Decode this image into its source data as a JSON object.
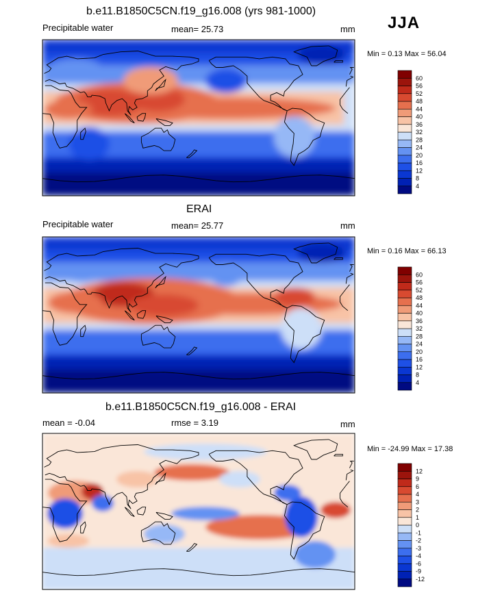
{
  "season": "JJA",
  "panels": [
    {
      "title": "b.e11.B1850C5CN.f19_g16.008 (yrs 981-1000)",
      "left_label": "Precipitable water",
      "center_label": "mean=  25.73",
      "right_label": "mm",
      "minmax": "Min =   0.13 Max =  56.04"
    },
    {
      "title": "ERAI",
      "left_label": "Precipitable water",
      "center_label": "mean=  25.77",
      "right_label": "mm",
      "minmax": "Min =   0.16 Max =  66.13"
    },
    {
      "title": "b.e11.B1850C5CN.f19_g16.008 - ERAI",
      "left_label": "mean =  -0.04",
      "center_label": "rmse =   3.19",
      "right_label": "mm",
      "minmax": "Min = -24.99 Max =  17.38"
    }
  ],
  "chart_data": [
    {
      "type": "heatmap",
      "title": "b.e11.B1850C5CN.f19_g16.008 (yrs 981-1000)",
      "variable": "Precipitable water",
      "units": "mm",
      "mean": 25.73,
      "min": 0.13,
      "max": 56.04,
      "colorbar_levels": [
        "4",
        "8",
        "12",
        "16",
        "20",
        "24",
        "28",
        "32",
        "36",
        "40",
        "44",
        "48",
        "52",
        "56",
        "60"
      ],
      "colors": [
        "#000a82",
        "#0021b4",
        "#0a37d2",
        "#1e50e6",
        "#3c6eee",
        "#6492f2",
        "#96b8f6",
        "#cddff8",
        "#fae6d8",
        "#f8c3a6",
        "#f09b78",
        "#e6704e",
        "#d84a30",
        "#c02a1a",
        "#9c140c",
        "#800000"
      ]
    },
    {
      "type": "heatmap",
      "title": "ERAI",
      "variable": "Precipitable water",
      "units": "mm",
      "mean": 25.77,
      "min": 0.16,
      "max": 66.13,
      "colorbar_levels": [
        "4",
        "8",
        "12",
        "16",
        "20",
        "24",
        "28",
        "32",
        "36",
        "40",
        "44",
        "48",
        "52",
        "56",
        "60"
      ],
      "colors": [
        "#000a82",
        "#0021b4",
        "#0a37d2",
        "#1e50e6",
        "#3c6eee",
        "#6492f2",
        "#96b8f6",
        "#cddff8",
        "#fae6d8",
        "#f8c3a6",
        "#f09b78",
        "#e6704e",
        "#d84a30",
        "#c02a1a",
        "#9c140c",
        "#800000"
      ]
    },
    {
      "type": "heatmap",
      "title": "b.e11.B1850C5CN.f19_g16.008 - ERAI",
      "units": "mm",
      "mean": -0.04,
      "rmse": 3.19,
      "min": -24.99,
      "max": 17.38,
      "colorbar_levels": [
        "-12",
        "-9",
        "-6",
        "-4",
        "-3",
        "-2",
        "-1",
        "0",
        "1",
        "2",
        "3",
        "4",
        "6",
        "9",
        "12"
      ],
      "colors": [
        "#000a82",
        "#0021b4",
        "#0a37d2",
        "#1e50e6",
        "#3c6eee",
        "#6492f2",
        "#96b8f6",
        "#cddff8",
        "#fae6d8",
        "#f8c3a6",
        "#f09b78",
        "#e6704e",
        "#d84a30",
        "#c02a1a",
        "#9c140c",
        "#800000"
      ]
    }
  ]
}
